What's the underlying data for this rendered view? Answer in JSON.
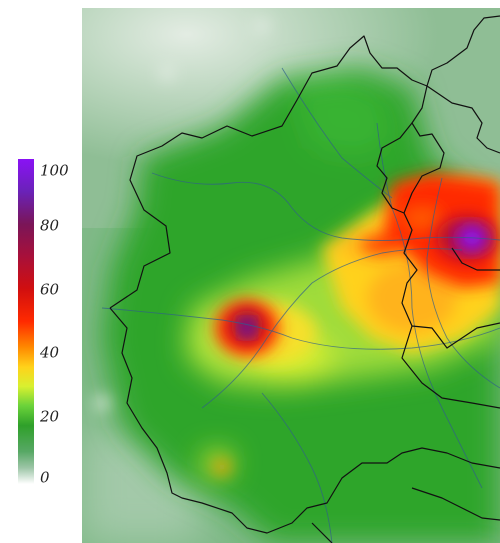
{
  "colorbar": {
    "ticks": [
      "100",
      "80",
      "60",
      "40",
      "20",
      "0"
    ],
    "gradient_stops": [
      {
        "value": 100,
        "color": "#8a12f5"
      },
      {
        "value": 90,
        "color": "#6a22b8"
      },
      {
        "value": 80,
        "color": "#7a1558"
      },
      {
        "value": 70,
        "color": "#a8103a"
      },
      {
        "value": 60,
        "color": "#d10f0f"
      },
      {
        "value": 50,
        "color": "#ff2a00"
      },
      {
        "value": 42,
        "color": "#ff8a00"
      },
      {
        "value": 36,
        "color": "#ffd21a"
      },
      {
        "value": 30,
        "color": "#d8f030"
      },
      {
        "value": 24,
        "color": "#6ad23a"
      },
      {
        "value": 18,
        "color": "#2fa02a"
      },
      {
        "value": 10,
        "color": "#57a865"
      },
      {
        "value": 5,
        "color": "#9cc5a6"
      },
      {
        "value": 0,
        "color": "#ffffff"
      }
    ]
  },
  "map": {
    "background_color": "#cfe0d2",
    "boundary_color": "#111111",
    "river_color": "#2f5e8c"
  }
}
